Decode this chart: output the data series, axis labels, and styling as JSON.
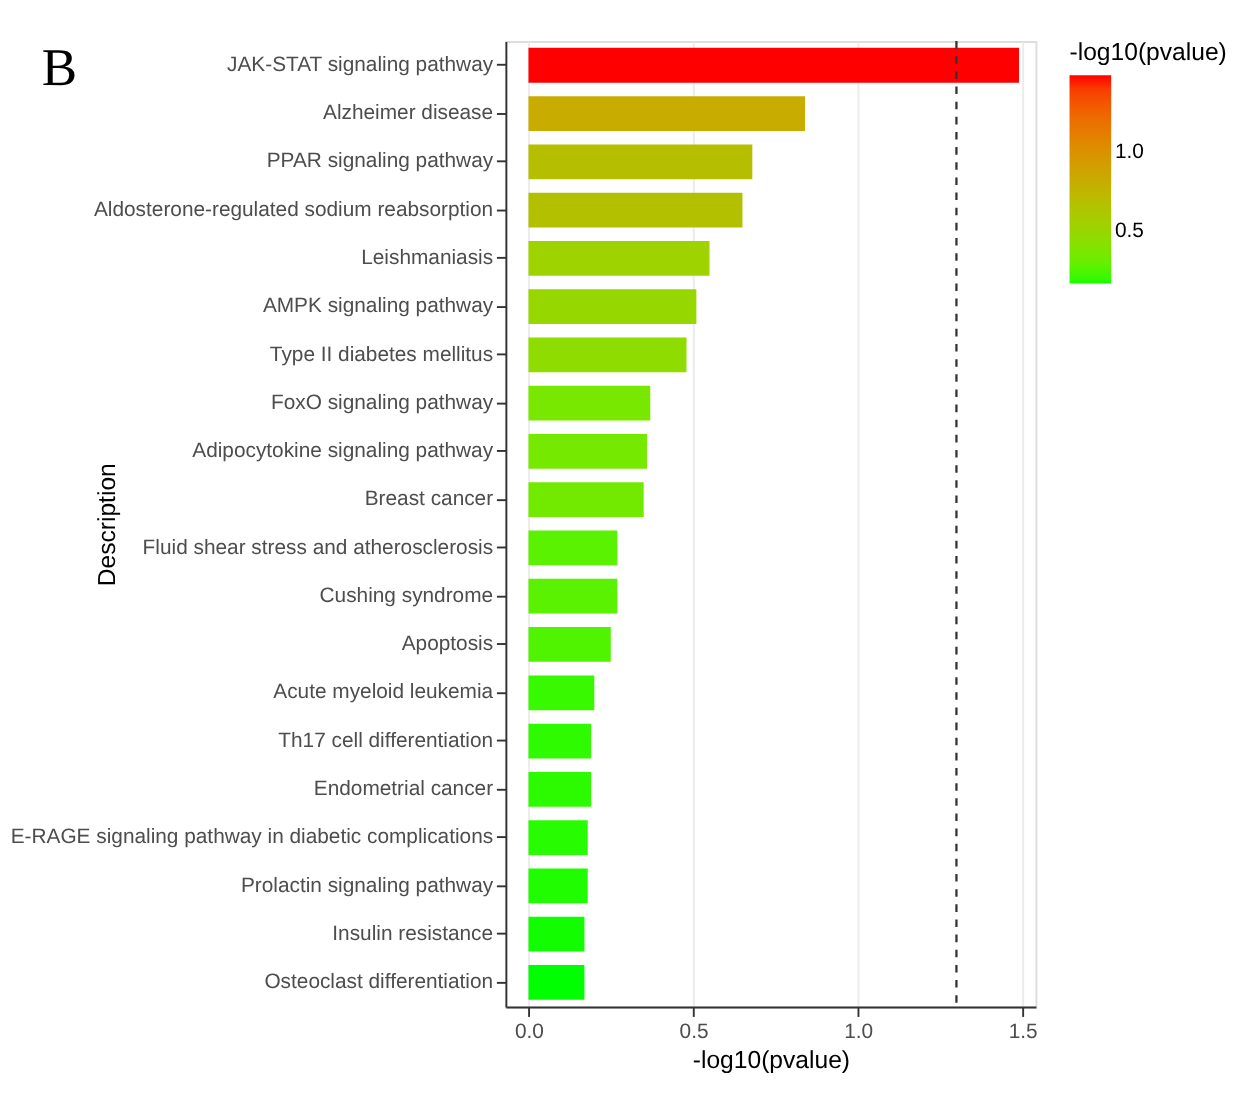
{
  "chart_data": {
    "type": "bar",
    "orientation": "horizontal",
    "xlabel": "-log10(pvalue)",
    "ylabel": "Description",
    "legend_title": "-log10(pvalue)",
    "annotations": [
      "B"
    ],
    "categories": [
      "JAK-STAT signaling pathway",
      "Alzheimer disease",
      "PPAR signaling pathway",
      "Aldosterone-regulated sodium reabsorption",
      "Leishmaniasis",
      "AMPK signaling pathway",
      "Type II diabetes mellitus",
      "FoxO signaling pathway",
      "Adipocytokine signaling pathway",
      "Breast cancer",
      "Fluid shear stress and atherosclerosis",
      "Cushing syndrome",
      "Apoptosis",
      "Acute myeloid leukemia",
      "Th17 cell differentiation",
      "Endometrial cancer",
      "E-RAGE signaling pathway in diabetic complications",
      "Prolactin signaling pathway",
      "Insulin resistance",
      "Osteoclast differentiation"
    ],
    "values": [
      1.49,
      0.84,
      0.68,
      0.65,
      0.55,
      0.51,
      0.48,
      0.37,
      0.36,
      0.35,
      0.27,
      0.27,
      0.25,
      0.2,
      0.19,
      0.19,
      0.18,
      0.18,
      0.17,
      0.17
    ],
    "colors": [
      "#ff0000",
      "#c8ad00",
      "#b6be00",
      "#b3c000",
      "#9ed300",
      "#96d700",
      "#8edc00",
      "#78e800",
      "#76e900",
      "#72ea00",
      "#5af200",
      "#5af200",
      "#50f400",
      "#38f900",
      "#2efb00",
      "#2cfb00",
      "#28fc00",
      "#20fd00",
      "#12fe00",
      "#00ff00"
    ],
    "clim": [
      0.17,
      1.49
    ],
    "cticks": [
      0.5,
      {
        "value": 1,
        "label": "1.0"
      }
    ],
    "xlim": [
      -0.07,
      1.54
    ],
    "xticks": [
      {
        "value": 0,
        "label": "0.0"
      },
      0.5,
      {
        "value": 1,
        "label": "1.0"
      },
      1.5
    ],
    "ref_lines": [
      {
        "axis": "x",
        "value": 1.3,
        "color": "#333333",
        "line_style": "dashed"
      }
    ],
    "grid": "x"
  }
}
